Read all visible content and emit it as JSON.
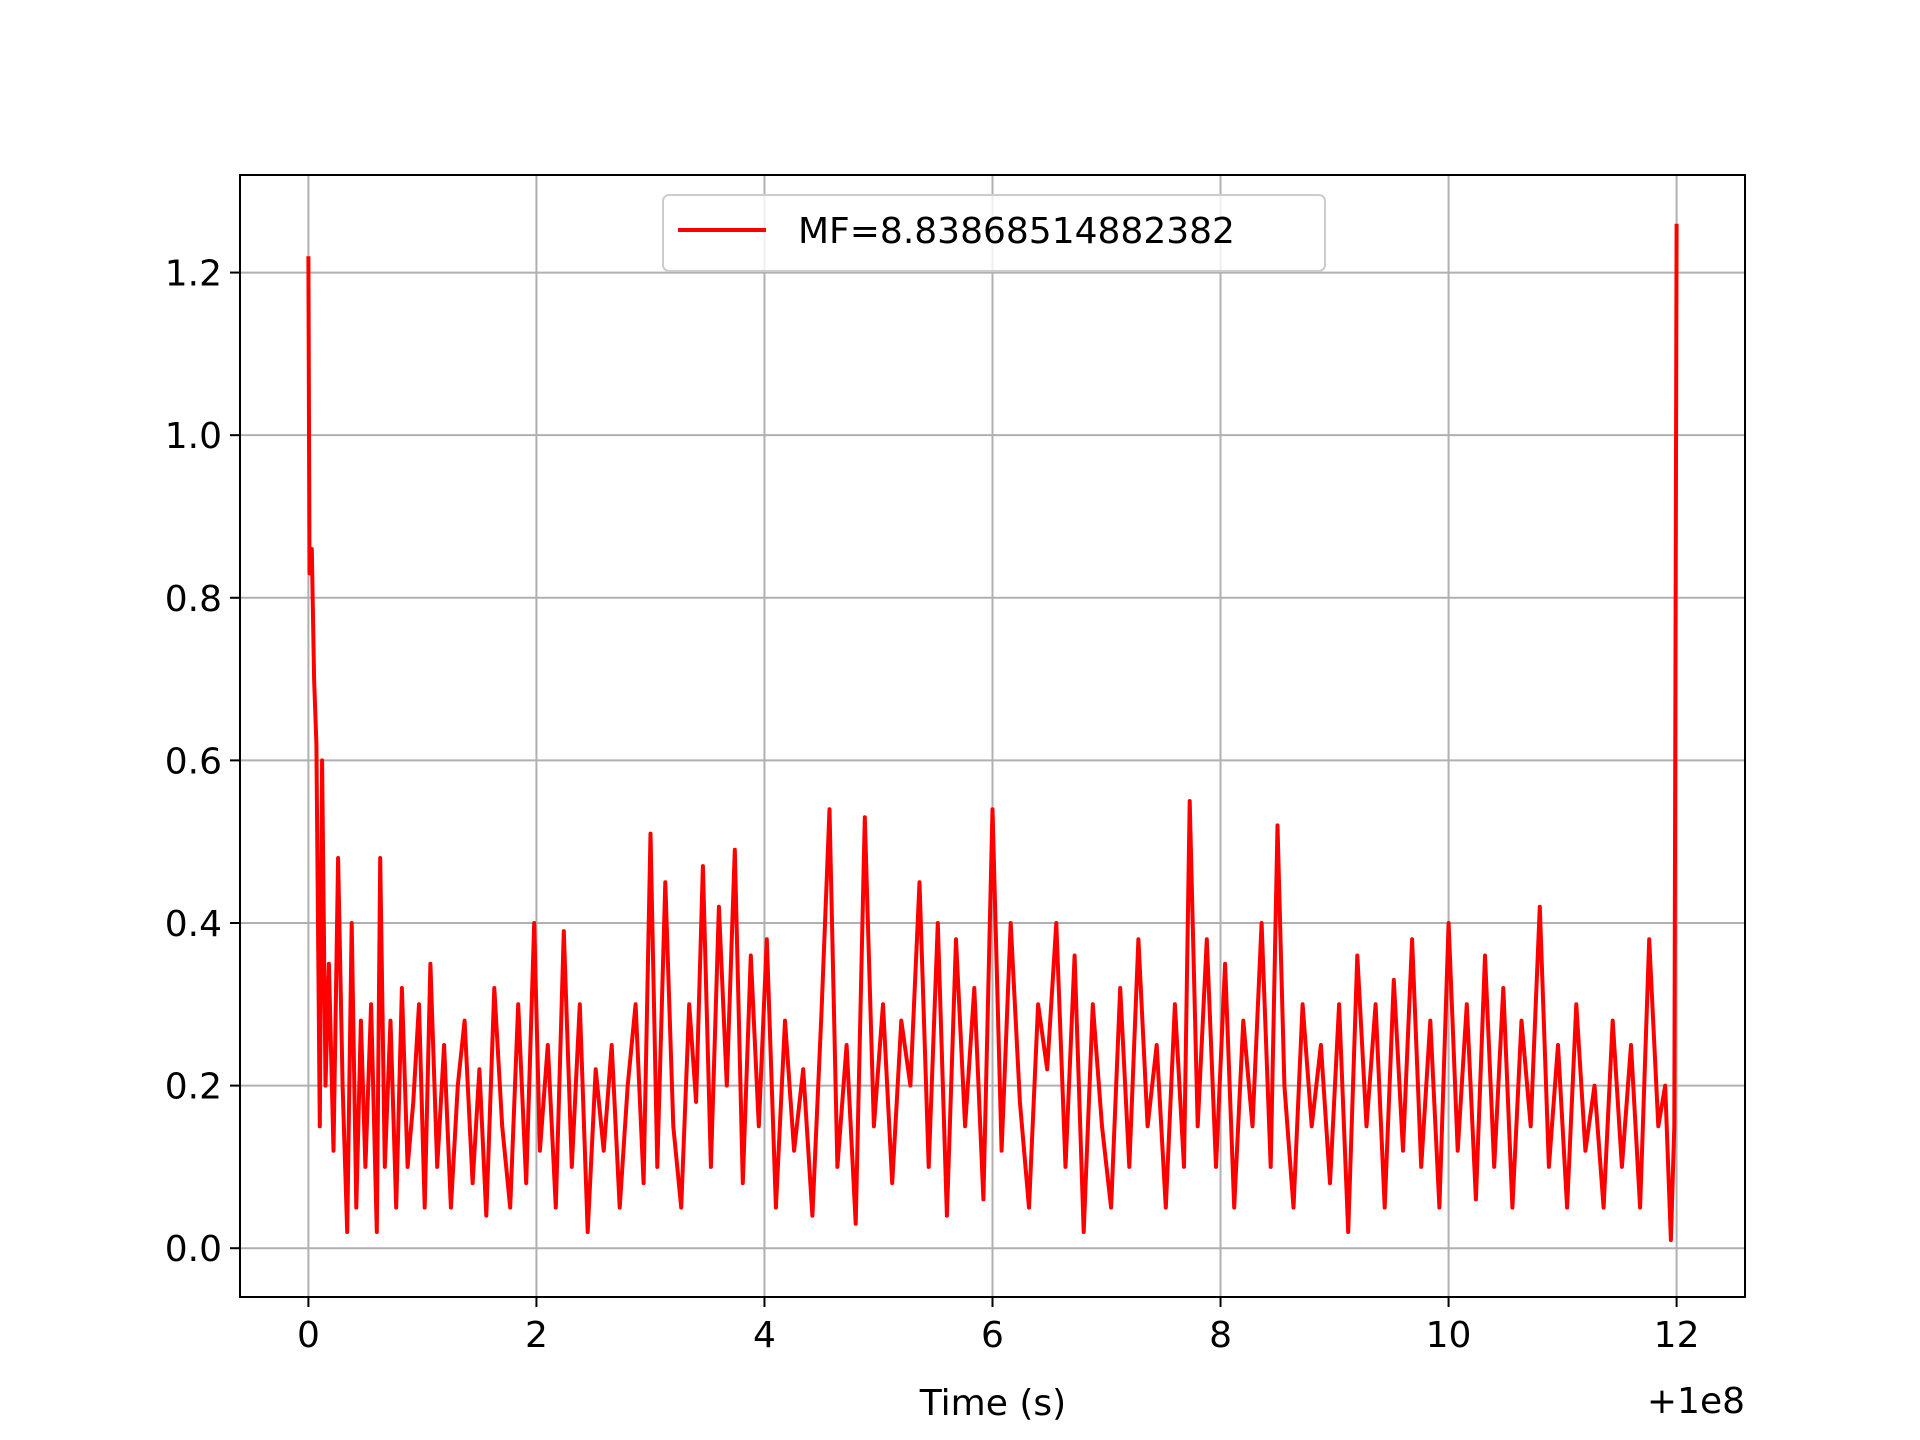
{
  "chart_data": {
    "type": "line",
    "title": "",
    "xlabel": "Time (s)",
    "ylabel": "",
    "x_offset_label": "+1e8",
    "xlim": [
      -0.6,
      12.6
    ],
    "ylim": [
      -0.06,
      1.32
    ],
    "xticks": [
      0,
      2,
      4,
      6,
      8,
      10,
      12
    ],
    "xtick_labels": [
      "0",
      "2",
      "4",
      "6",
      "8",
      "10",
      "12"
    ],
    "yticks": [
      0.0,
      0.2,
      0.4,
      0.6,
      0.8,
      1.0,
      1.2
    ],
    "ytick_labels": [
      "0.0",
      "0.2",
      "0.4",
      "0.6",
      "0.8",
      "1.0",
      "1.2"
    ],
    "grid": true,
    "legend_position": "upper center",
    "series": [
      {
        "name": "MF=8.83868514882382",
        "color": "#ff0000",
        "x": [
          0.0,
          0.01,
          0.03,
          0.05,
          0.07,
          0.1,
          0.12,
          0.15,
          0.18,
          0.22,
          0.26,
          0.3,
          0.34,
          0.38,
          0.42,
          0.46,
          0.5,
          0.55,
          0.6,
          0.63,
          0.67,
          0.72,
          0.77,
          0.82,
          0.87,
          0.92,
          0.97,
          1.02,
          1.07,
          1.13,
          1.19,
          1.25,
          1.31,
          1.37,
          1.44,
          1.5,
          1.56,
          1.63,
          1.7,
          1.77,
          1.84,
          1.91,
          1.98,
          2.03,
          2.1,
          2.17,
          2.24,
          2.31,
          2.38,
          2.45,
          2.52,
          2.59,
          2.66,
          2.73,
          2.8,
          2.87,
          2.94,
          3.0,
          3.06,
          3.13,
          3.2,
          3.27,
          3.34,
          3.4,
          3.46,
          3.53,
          3.6,
          3.67,
          3.74,
          3.81,
          3.88,
          3.95,
          4.02,
          4.1,
          4.18,
          4.26,
          4.34,
          4.42,
          4.5,
          4.57,
          4.64,
          4.72,
          4.8,
          4.88,
          4.96,
          5.04,
          5.12,
          5.2,
          5.28,
          5.36,
          5.44,
          5.52,
          5.6,
          5.68,
          5.76,
          5.84,
          5.92,
          6.0,
          6.08,
          6.16,
          6.24,
          6.32,
          6.4,
          6.48,
          6.56,
          6.64,
          6.72,
          6.8,
          6.88,
          6.96,
          7.04,
          7.12,
          7.2,
          7.28,
          7.36,
          7.44,
          7.52,
          7.6,
          7.68,
          7.73,
          7.8,
          7.88,
          7.96,
          8.04,
          8.12,
          8.2,
          8.28,
          8.36,
          8.44,
          8.5,
          8.56,
          8.64,
          8.72,
          8.8,
          8.88,
          8.96,
          9.04,
          9.12,
          9.2,
          9.28,
          9.36,
          9.44,
          9.52,
          9.6,
          9.68,
          9.76,
          9.84,
          9.92,
          10.0,
          10.08,
          10.16,
          10.24,
          10.32,
          10.4,
          10.48,
          10.56,
          10.64,
          10.72,
          10.8,
          10.88,
          10.96,
          11.04,
          11.12,
          11.2,
          11.28,
          11.36,
          11.44,
          11.52,
          11.6,
          11.68,
          11.76,
          11.84,
          11.9,
          11.95,
          11.98,
          12.0
        ],
        "y": [
          1.22,
          0.83,
          0.86,
          0.7,
          0.62,
          0.15,
          0.6,
          0.2,
          0.35,
          0.12,
          0.48,
          0.2,
          0.02,
          0.4,
          0.05,
          0.28,
          0.1,
          0.3,
          0.02,
          0.48,
          0.1,
          0.28,
          0.05,
          0.32,
          0.1,
          0.18,
          0.3,
          0.05,
          0.35,
          0.1,
          0.25,
          0.05,
          0.2,
          0.28,
          0.08,
          0.22,
          0.04,
          0.32,
          0.15,
          0.05,
          0.3,
          0.08,
          0.4,
          0.12,
          0.25,
          0.05,
          0.39,
          0.1,
          0.3,
          0.02,
          0.22,
          0.12,
          0.25,
          0.05,
          0.2,
          0.3,
          0.08,
          0.51,
          0.1,
          0.45,
          0.15,
          0.05,
          0.3,
          0.18,
          0.47,
          0.1,
          0.42,
          0.2,
          0.49,
          0.08,
          0.36,
          0.15,
          0.38,
          0.05,
          0.28,
          0.12,
          0.22,
          0.04,
          0.29,
          0.54,
          0.1,
          0.25,
          0.03,
          0.53,
          0.15,
          0.3,
          0.08,
          0.28,
          0.2,
          0.45,
          0.1,
          0.4,
          0.04,
          0.38,
          0.15,
          0.32,
          0.06,
          0.54,
          0.12,
          0.4,
          0.18,
          0.05,
          0.3,
          0.22,
          0.4,
          0.1,
          0.36,
          0.02,
          0.3,
          0.15,
          0.05,
          0.32,
          0.1,
          0.38,
          0.15,
          0.25,
          0.05,
          0.3,
          0.1,
          0.55,
          0.15,
          0.38,
          0.1,
          0.35,
          0.05,
          0.28,
          0.15,
          0.4,
          0.1,
          0.52,
          0.2,
          0.05,
          0.3,
          0.15,
          0.25,
          0.08,
          0.3,
          0.02,
          0.36,
          0.15,
          0.3,
          0.05,
          0.33,
          0.12,
          0.38,
          0.1,
          0.28,
          0.05,
          0.4,
          0.12,
          0.3,
          0.06,
          0.36,
          0.1,
          0.32,
          0.05,
          0.28,
          0.15,
          0.42,
          0.1,
          0.25,
          0.05,
          0.3,
          0.12,
          0.2,
          0.05,
          0.28,
          0.1,
          0.25,
          0.05,
          0.38,
          0.15,
          0.2,
          0.01,
          0.15,
          1.26
        ]
      }
    ]
  }
}
